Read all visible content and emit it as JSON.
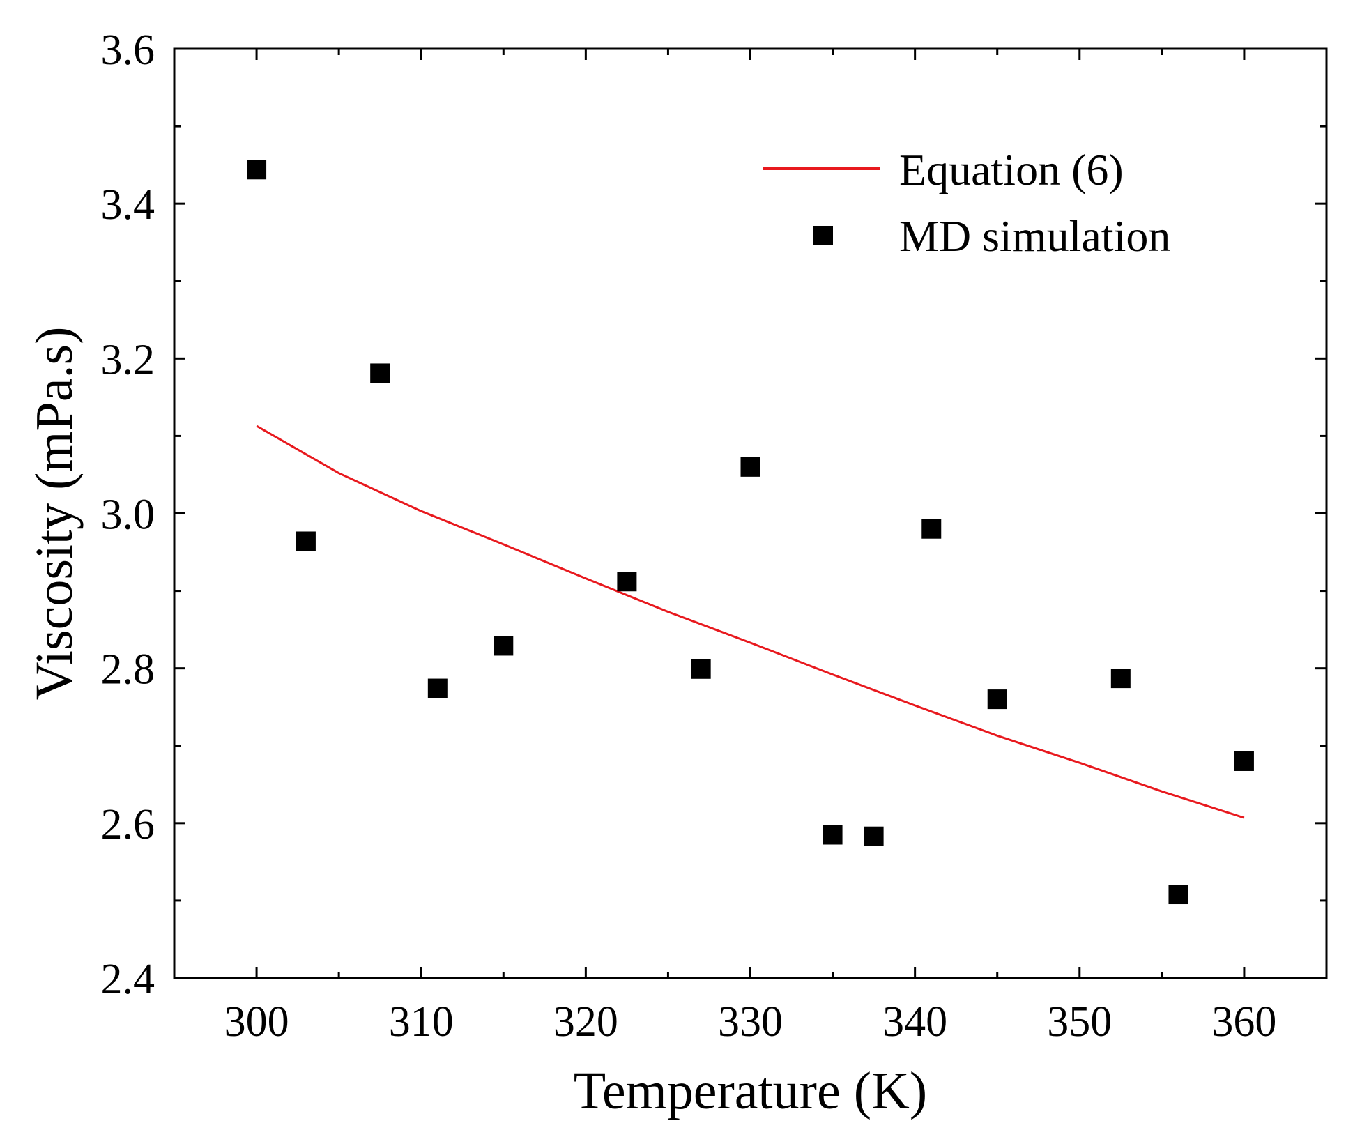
{
  "chart_data": {
    "type": "scatter",
    "title": "",
    "xlabel": "Temperature (K)",
    "ylabel": "Viscosity (mPa.s)",
    "xlim": [
      295,
      365
    ],
    "ylim": [
      2.4,
      3.6
    ],
    "xticks": [
      300,
      310,
      320,
      330,
      340,
      350,
      360
    ],
    "xtick_labels": [
      "300",
      "310",
      "320",
      "330",
      "340",
      "350",
      "360"
    ],
    "yticks": [
      2.4,
      2.6,
      2.8,
      3.0,
      3.2,
      3.4,
      3.6
    ],
    "ytick_labels": [
      "2.4",
      "2.6",
      "2.8",
      "3.0",
      "3.2",
      "3.4",
      "3.6"
    ],
    "grid": false,
    "legend_position": "top-right",
    "series": [
      {
        "name": "Equation (6)",
        "kind": "line",
        "color": "#e8191e",
        "x": [
          300,
          305,
          310,
          315,
          320,
          325,
          330,
          335,
          340,
          345,
          350,
          355,
          360
        ],
        "y": [
          3.113,
          3.052,
          3.003,
          2.96,
          2.916,
          2.873,
          2.833,
          2.792,
          2.752,
          2.713,
          2.678,
          2.641,
          2.607
        ]
      },
      {
        "name": "MD simulation",
        "kind": "scatter",
        "marker": "square",
        "color": "#000000",
        "x": [
          300,
          303,
          307.5,
          311,
          315,
          322.5,
          327,
          330,
          335,
          337.5,
          341,
          345,
          352.5,
          356,
          360
        ],
        "y": [
          3.444,
          2.964,
          3.181,
          2.774,
          2.829,
          2.912,
          2.799,
          3.06,
          2.585,
          2.583,
          2.98,
          2.76,
          2.787,
          2.508,
          2.68
        ]
      }
    ]
  }
}
